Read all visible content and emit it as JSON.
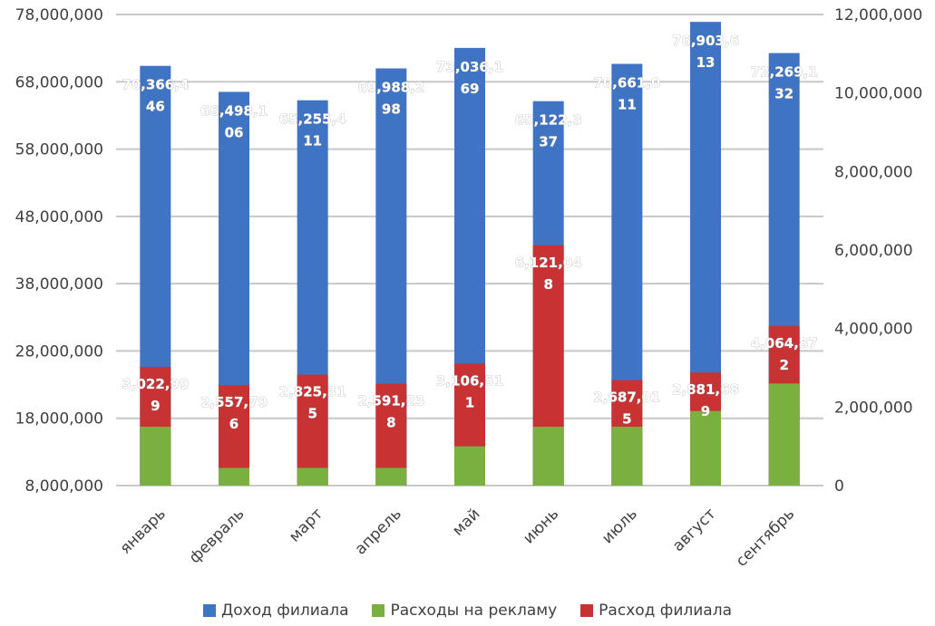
{
  "chart_data": {
    "type": "bar",
    "stacked": true,
    "categories": [
      "январь",
      "февраль",
      "март",
      "апрель",
      "май",
      "июнь",
      "июль",
      "август",
      "сентябрь"
    ],
    "series": [
      {
        "name": "Доход филиала",
        "axis": "left",
        "color": "#3f73c4",
        "values": [
          70366446,
          66498106,
          65255411,
          69988298,
          73036169,
          65122337,
          70661011,
          76903613,
          72269132
        ],
        "labels": [
          [
            "70,366,4",
            "46"
          ],
          [
            "66,498,1",
            "06"
          ],
          [
            "65,255,4",
            "11"
          ],
          [
            "69,988,2",
            "98"
          ],
          [
            "73,036,1",
            "69"
          ],
          [
            "65,122,3",
            "37"
          ],
          [
            "70,661,0",
            "11"
          ],
          [
            "76,903,6",
            "13"
          ],
          [
            "72,269,1",
            "32"
          ]
        ]
      },
      {
        "name": "Расход филиала",
        "axis": "right",
        "color": "#c83232",
        "values": [
          3022999,
          2557796,
          2825315,
          2591238,
          3106511,
          6121048,
          2687015,
          2881689,
          4064872
        ],
        "labels": [
          [
            "3,022,99",
            "9"
          ],
          [
            "2,557,79",
            "6"
          ],
          [
            "2,825,31",
            "5"
          ],
          [
            "2,591,23",
            "8"
          ],
          [
            "3,106,51",
            "1"
          ],
          [
            "6,121,04",
            "8"
          ],
          [
            "2,687,01",
            "5"
          ],
          [
            "2,881,68",
            "9"
          ],
          [
            "4,064,87",
            "2"
          ]
        ]
      },
      {
        "name": "Расходы на рекламу",
        "axis": "right",
        "color": "#7ab040",
        "values": [
          1500000,
          450000,
          450000,
          450000,
          1000000,
          1500000,
          1500000,
          1900000,
          2600000
        ]
      }
    ],
    "yaxis_left": {
      "min": 8000000,
      "max": 78000000,
      "ticks": [
        "78,000,000",
        "68,000,000",
        "58,000,000",
        "48,000,000",
        "38,000,000",
        "28,000,000",
        "18,000,000",
        "8,000,000"
      ],
      "tick_values": [
        78000000,
        68000000,
        58000000,
        48000000,
        38000000,
        28000000,
        18000000,
        8000000
      ]
    },
    "yaxis_right": {
      "min": 0,
      "max": 12000000,
      "ticks": [
        "12,000,000",
        "10,000,000",
        "8,000,000",
        "6,000,000",
        "4,000,000",
        "2,000,000",
        "0"
      ],
      "tick_values": [
        12000000,
        10000000,
        8000000,
        6000000,
        4000000,
        2000000,
        0
      ]
    },
    "grid": true,
    "legend_position": "bottom",
    "legend": [
      {
        "name": "Доход филиала",
        "color": "#3f73c4"
      },
      {
        "name": "Расходы на рекламу",
        "color": "#7ab040"
      },
      {
        "name": "Расход филиала",
        "color": "#c83232"
      }
    ]
  }
}
